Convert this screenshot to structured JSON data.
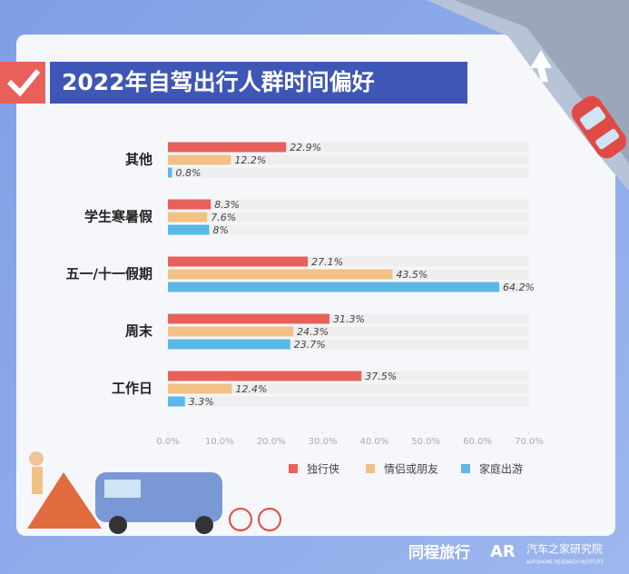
{
  "chart_data": {
    "type": "hbar",
    "title": "2022年自驾出行人群时间偏好",
    "categories": [
      "其他",
      "学生寒暑假",
      "五一/十一假期",
      "周末",
      "工作日"
    ],
    "series": [
      {
        "name": "独行侠",
        "color": "#e8605a",
        "values": [
          22.9,
          8.3,
          27.1,
          31.3,
          37.5
        ],
        "value_labels": [
          "22.9%",
          "8.3%",
          "27.1%",
          "31.3%",
          "37.5%"
        ]
      },
      {
        "name": "情侣或朋友",
        "color": "#f2c185",
        "values": [
          12.2,
          7.6,
          43.5,
          24.3,
          12.4
        ],
        "value_labels": [
          "12.2%",
          "7.6%",
          "43.5%",
          "24.3%",
          "12.4%"
        ]
      },
      {
        "name": "家庭出游",
        "color": "#5bb8e6",
        "values": [
          0.8,
          8,
          64.2,
          23.7,
          3.3
        ],
        "value_labels": [
          "0.8%",
          "8%",
          "64.2%",
          "23.7%",
          "3.3%"
        ]
      }
    ],
    "xlim": [
      0,
      70
    ],
    "xticks": [
      {
        "value": 0,
        "label": "0.0%"
      },
      {
        "value": 10,
        "label": "10.0%"
      },
      {
        "value": 20,
        "label": "20.0%"
      },
      {
        "value": 30,
        "label": "30.0%"
      },
      {
        "value": 40,
        "label": "40.0%"
      },
      {
        "value": 50,
        "label": "50.0%"
      },
      {
        "value": 60,
        "label": "60.0%"
      },
      {
        "value": 70,
        "label": "70.0%"
      }
    ]
  },
  "footer": {
    "brand1": "同程旅行",
    "brand2": "汽车之家研究院",
    "brand2_sub": "AUTOHOME RESEARCH INSTITUTE"
  }
}
